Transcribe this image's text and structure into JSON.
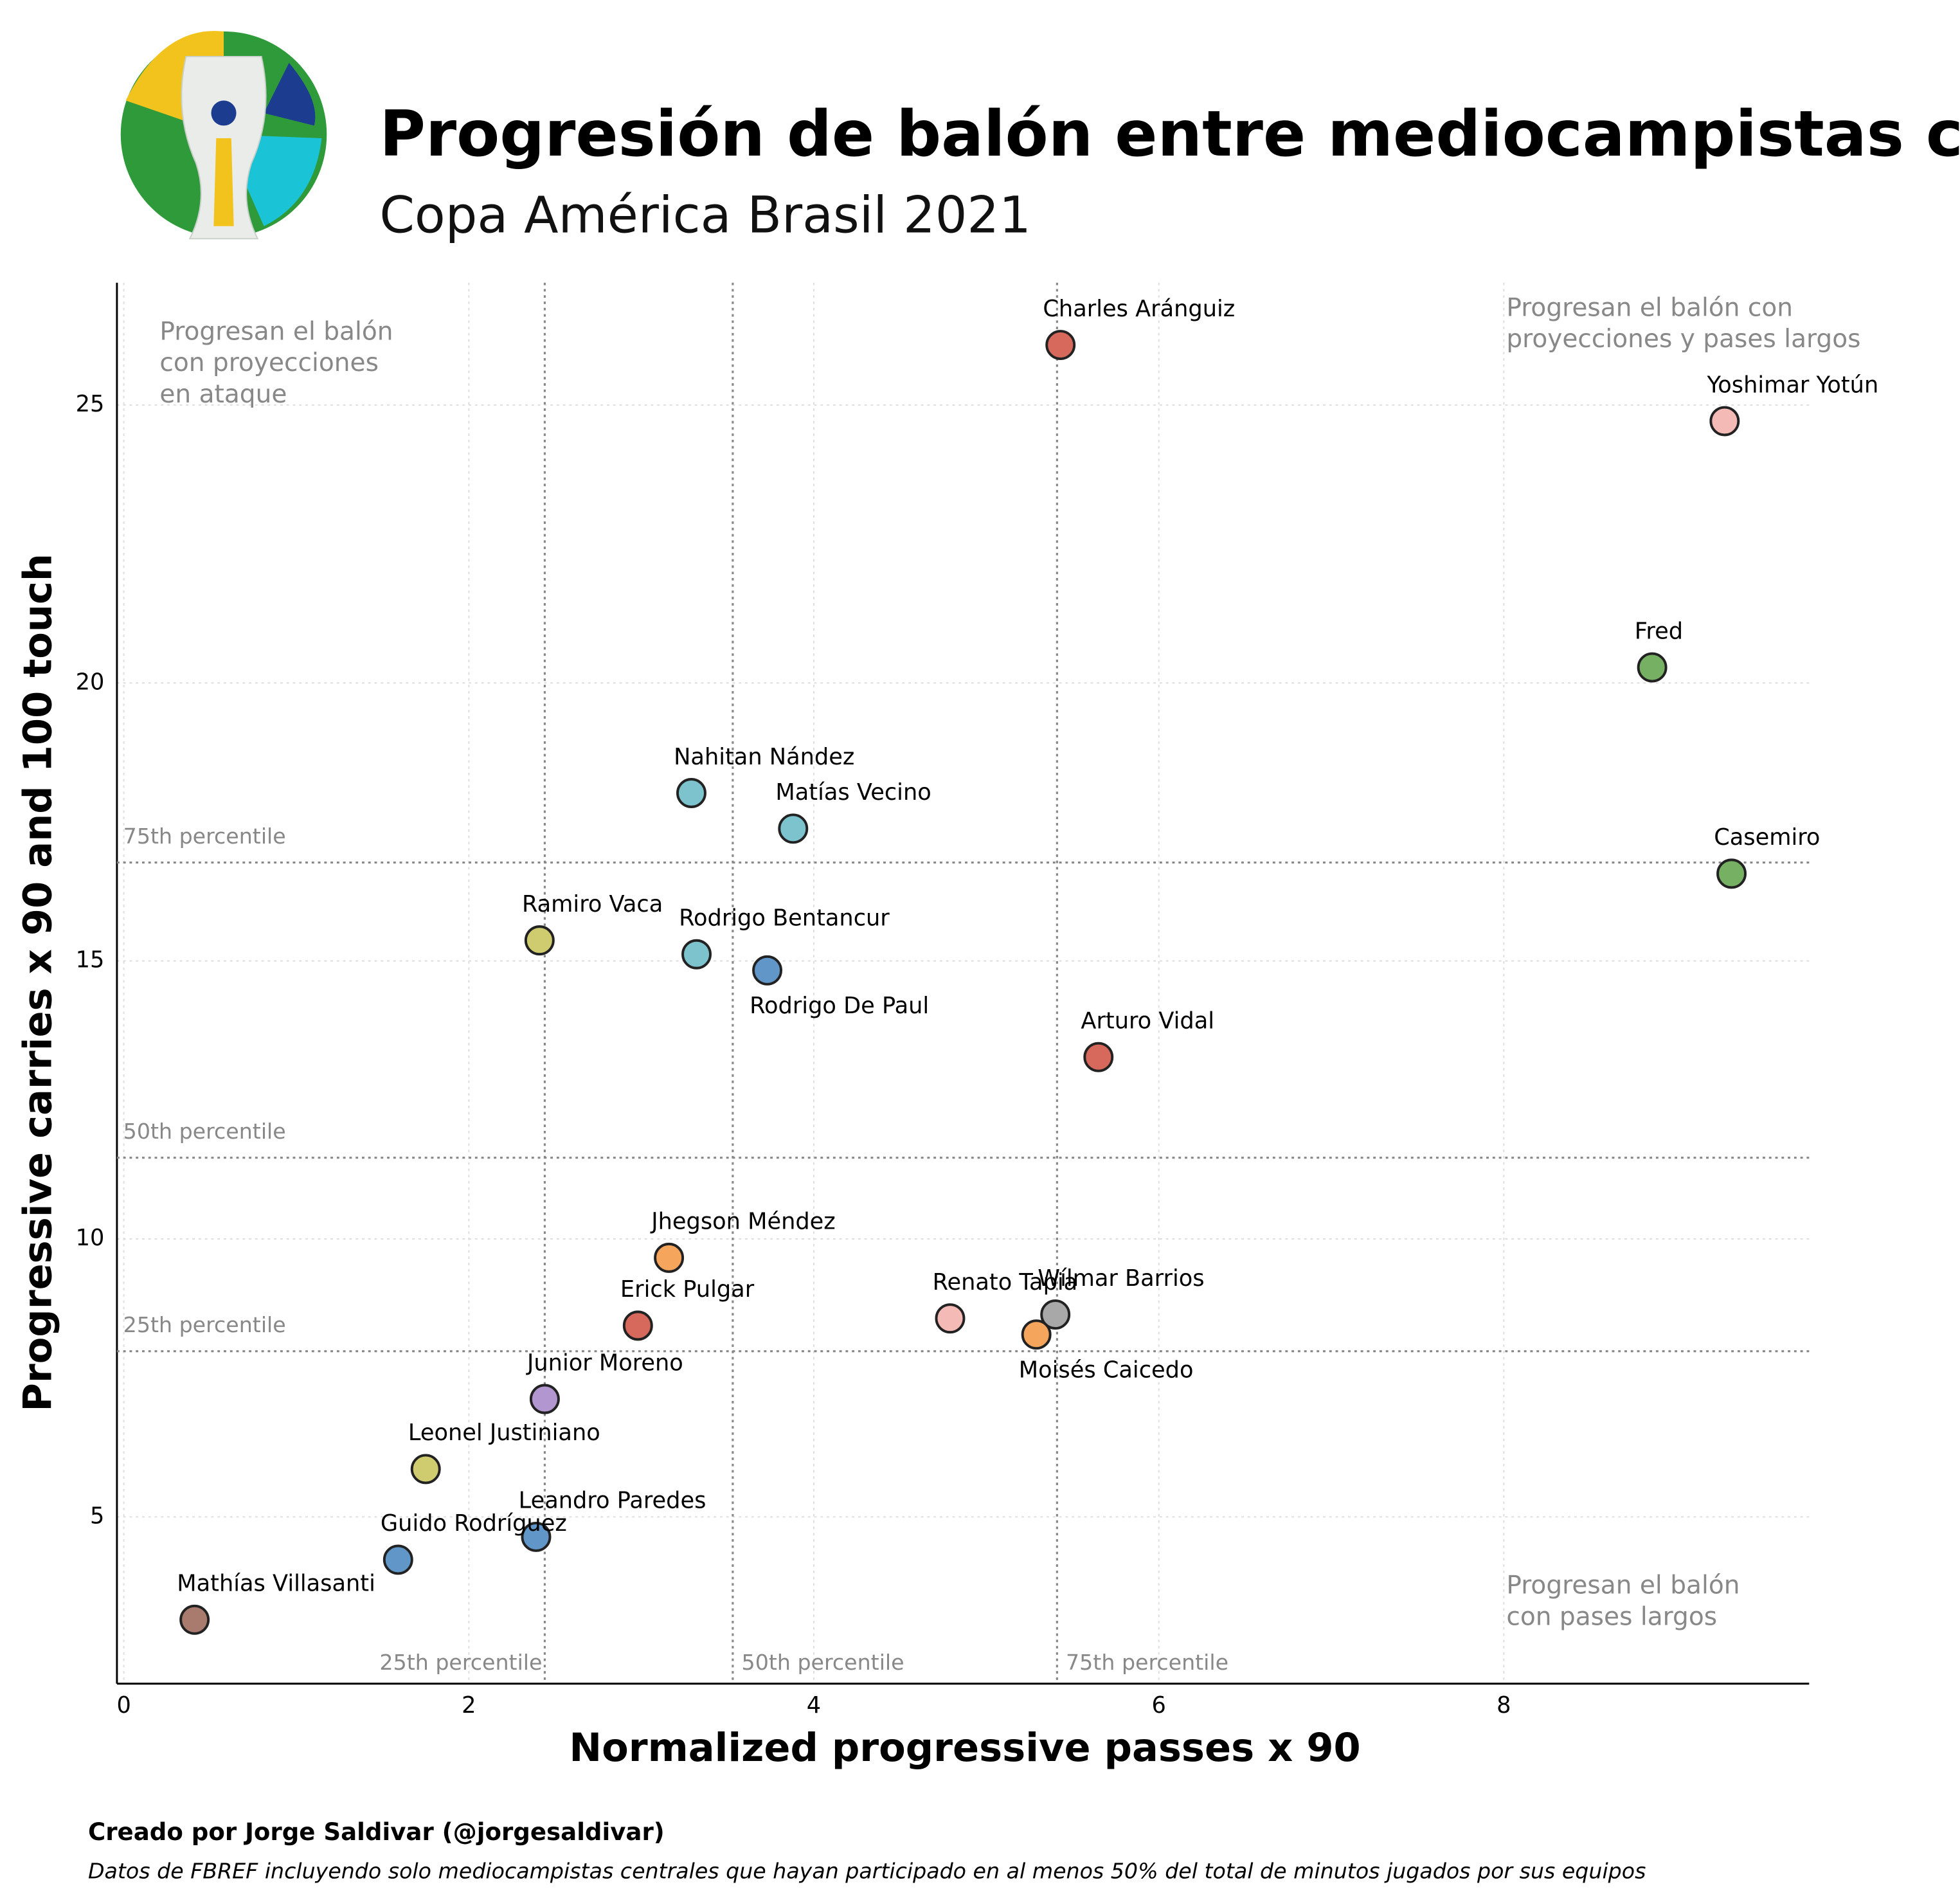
{
  "chart_data": {
    "type": "scatter",
    "title": "Progresión de balón entre mediocampistas centrales",
    "subtitle": "Copa América Brasil 2021",
    "x_label": "Normalized progressive passes x 90",
    "y_label": "Progressive carries x 90 and 100 touch",
    "xlim": [
      -0.04,
      9.77
    ],
    "ylim": [
      2.0,
      27.2
    ],
    "xticks": [
      0,
      2,
      4,
      6,
      8
    ],
    "yticks": [
      5,
      10,
      15,
      20,
      25
    ],
    "grid": true,
    "x_percentiles": [
      {
        "value": 2.44,
        "label": "25th percentile"
      },
      {
        "value": 3.53,
        "label": "50th percentile"
      },
      {
        "value": 5.41,
        "label": "75th percentile"
      }
    ],
    "y_percentiles": [
      {
        "value": 7.98,
        "label": "25th percentile"
      },
      {
        "value": 11.46,
        "label": "50th percentile"
      },
      {
        "value": 16.77,
        "label": "75th percentile"
      }
    ],
    "quadrant_notes": {
      "top_left": [
        "Progresan el balón",
        "con proyecciones",
        "en ataque"
      ],
      "top_right": [
        "Progresan el balón con",
        "proyecciones y pases largos"
      ],
      "bottom_right": [
        "Progresan el balón",
        "con pases largos"
      ]
    },
    "points": [
      {
        "name": "Charles Aránguiz",
        "x": 5.43,
        "y": 26.08,
        "color": "#d6695b"
      },
      {
        "name": "Yoshimar Yotún",
        "x": 9.28,
        "y": 24.71,
        "color": "#f4bab6"
      },
      {
        "name": "Fred",
        "x": 8.86,
        "y": 20.28,
        "color": "#76b062"
      },
      {
        "name": "Casemiro",
        "x": 9.32,
        "y": 16.57,
        "color": "#76b062"
      },
      {
        "name": "Nahitan Nández",
        "x": 3.29,
        "y": 18.02,
        "color": "#7cc3cd"
      },
      {
        "name": "Matías Vecino",
        "x": 3.88,
        "y": 17.38,
        "color": "#7cc3cd"
      },
      {
        "name": "Ramiro Vaca",
        "x": 2.41,
        "y": 15.37,
        "color": "#cfcc70"
      },
      {
        "name": "Rodrigo Bentancur",
        "x": 3.32,
        "y": 15.12,
        "color": "#7cc3cd"
      },
      {
        "name": "Rodrigo De Paul",
        "x": 3.73,
        "y": 14.83,
        "color": "#6096c8"
      },
      {
        "name": "Arturo Vidal",
        "x": 5.65,
        "y": 13.27,
        "color": "#d6695b"
      },
      {
        "name": "Jhegson Méndez",
        "x": 3.16,
        "y": 9.66,
        "color": "#f5a55c"
      },
      {
        "name": "Erick Pulgar",
        "x": 2.98,
        "y": 8.44,
        "color": "#d6695b"
      },
      {
        "name": "Renato Tapia",
        "x": 4.79,
        "y": 8.57,
        "color": "#f4bab6"
      },
      {
        "name": "Wílmar Barrios",
        "x": 5.4,
        "y": 8.64,
        "color": "#a8a8a8"
      },
      {
        "name": "Moisés Caicedo",
        "x": 5.29,
        "y": 8.28,
        "color": "#f5a55c"
      },
      {
        "name": "Junior Moreno",
        "x": 2.44,
        "y": 7.12,
        "color": "#b296cf"
      },
      {
        "name": "Leonel Justiniano",
        "x": 1.75,
        "y": 5.86,
        "color": "#cfcc70"
      },
      {
        "name": "Leandro Paredes",
        "x": 2.39,
        "y": 4.64,
        "color": "#6096c8"
      },
      {
        "name": "Guido Rodríguez",
        "x": 1.59,
        "y": 4.23,
        "color": "#6096c8"
      },
      {
        "name": "Mathías Villasanti",
        "x": 0.41,
        "y": 3.15,
        "color": "#a87b6e"
      }
    ],
    "credit": "Creado por Jorge Saldivar (@jorgesaldivar)",
    "source": "Datos de FBREF incluyendo solo mediocampistas centrales que hayan participado en al menos 50% del total de minutos jugados por sus equipos"
  }
}
